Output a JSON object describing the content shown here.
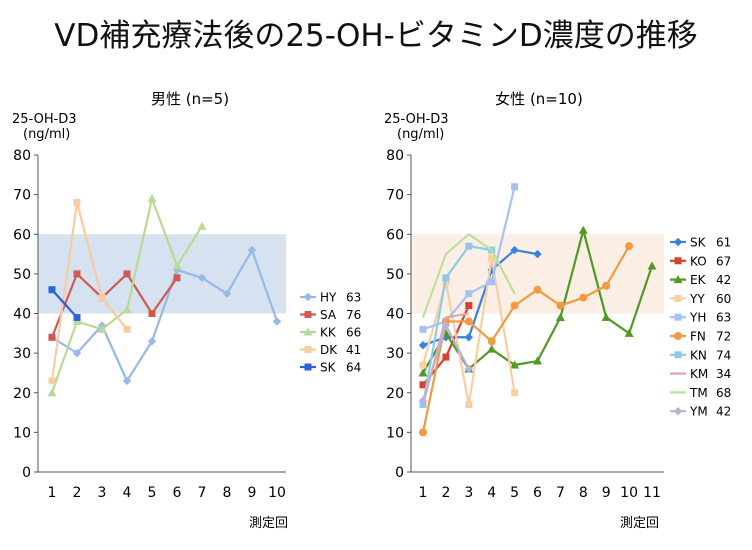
{
  "title": "VD補充療法後の25-OH-ビタミンD濃度の推移",
  "charts": [
    {
      "title": "男性 (n=5)",
      "ylabel": "25-OH-D3",
      "yunit": "(ng/ml)",
      "xlabel": "測定回",
      "band_color": "#d6e2ef"
    },
    {
      "title": "女性 (n=10)",
      "ylabel": "25-OH-D3",
      "yunit": "(ng/ml)",
      "xlabel": "測定回",
      "band_color": "#fbeee4"
    }
  ],
  "chart_data": [
    {
      "type": "line",
      "title": "男性 (n=5)",
      "ylabel": "25-OH-D3 (ng/ml)",
      "xlabel": "測定回",
      "ylim": [
        0,
        80
      ],
      "yticks": [
        0,
        10,
        20,
        30,
        40,
        50,
        60,
        70,
        80
      ],
      "x": [
        1,
        2,
        3,
        4,
        5,
        6,
        7,
        8,
        9,
        10
      ],
      "reference_band": [
        40,
        60
      ],
      "legend_position": "right",
      "series": [
        {
          "name": "HY",
          "age": "63",
          "color": "#97b9ea",
          "marker": "diamond",
          "values": [
            34,
            30,
            37,
            23,
            33,
            51,
            49,
            45,
            56,
            38
          ]
        },
        {
          "name": "SA",
          "age": "76",
          "color": "#cf5a52",
          "marker": "square",
          "values": [
            34,
            50,
            44,
            50,
            40,
            49,
            null,
            null,
            null,
            null
          ]
        },
        {
          "name": "KK",
          "age": "66",
          "color": "#b9da95",
          "marker": "triangle",
          "values": [
            20,
            38,
            36,
            41,
            69,
            52,
            62,
            null,
            null,
            null
          ]
        },
        {
          "name": "DK",
          "age": "41",
          "color": "#f8cba0",
          "marker": "square",
          "values": [
            23,
            68,
            44,
            36,
            null,
            null,
            null,
            null,
            null,
            null
          ]
        },
        {
          "name": "SK",
          "age": "64",
          "color": "#2a63de",
          "marker": "square",
          "values": [
            46,
            39,
            null,
            null,
            null,
            null,
            null,
            null,
            null,
            null
          ]
        }
      ]
    },
    {
      "type": "line",
      "title": "女性 (n=10)",
      "ylabel": "25-OH-D3 (ng/ml)",
      "xlabel": "測定回",
      "ylim": [
        0,
        80
      ],
      "yticks": [
        0,
        10,
        20,
        30,
        40,
        50,
        60,
        70,
        80
      ],
      "x": [
        1,
        2,
        3,
        4,
        5,
        6,
        7,
        8,
        9,
        10,
        11
      ],
      "reference_band": [
        40,
        60
      ],
      "legend_position": "right",
      "series": [
        {
          "name": "SK",
          "age": "61",
          "color": "#3b7fe0",
          "marker": "diamond",
          "values": [
            32,
            34,
            34,
            51,
            56,
            55,
            null,
            null,
            null,
            null,
            null
          ]
        },
        {
          "name": "KO",
          "age": "67",
          "color": "#d5412f",
          "marker": "square",
          "values": [
            22,
            29,
            42,
            null,
            null,
            null,
            null,
            null,
            null,
            null,
            null
          ]
        },
        {
          "name": "EK",
          "age": "42",
          "color": "#4e9a23",
          "marker": "triangle",
          "values": [
            25,
            35,
            26,
            31,
            27,
            28,
            39,
            61,
            39,
            35,
            52
          ]
        },
        {
          "name": "YY",
          "age": "60",
          "color": "#f8cfa0",
          "marker": "square",
          "values": [
            27,
            48,
            17,
            54,
            20,
            null,
            null,
            null,
            null,
            null,
            null
          ]
        },
        {
          "name": "YH",
          "age": "63",
          "color": "#a7c0f5",
          "marker": "square",
          "values": [
            36,
            38,
            45,
            48,
            72,
            null,
            null,
            null,
            null,
            null,
            null
          ]
        },
        {
          "name": "FN",
          "age": "72",
          "color": "#f29a3f",
          "marker": "circle",
          "values": [
            10,
            38,
            38,
            33,
            42,
            46,
            42,
            44,
            47,
            57,
            null
          ]
        },
        {
          "name": "KN",
          "age": "74",
          "color": "#8ccbe6",
          "marker": "square",
          "values": [
            17,
            49,
            57,
            56,
            null,
            null,
            null,
            null,
            null,
            null,
            null
          ]
        },
        {
          "name": "KM",
          "age": "34",
          "color": "#e3a6a6",
          "marker": "none",
          "values": [
            17,
            39,
            40,
            null,
            null,
            null,
            null,
            null,
            null,
            null,
            null
          ]
        },
        {
          "name": "TM",
          "age": "68",
          "color": "#bde09b",
          "marker": "none",
          "values": [
            39,
            55,
            60,
            56,
            45,
            null,
            null,
            null,
            null,
            null,
            null
          ]
        },
        {
          "name": "YM",
          "age": "42",
          "color": "#b9b2d8",
          "marker": "diamond",
          "values": [
            18,
            37,
            26,
            null,
            null,
            null,
            null,
            null,
            null,
            null,
            null
          ]
        }
      ]
    }
  ]
}
